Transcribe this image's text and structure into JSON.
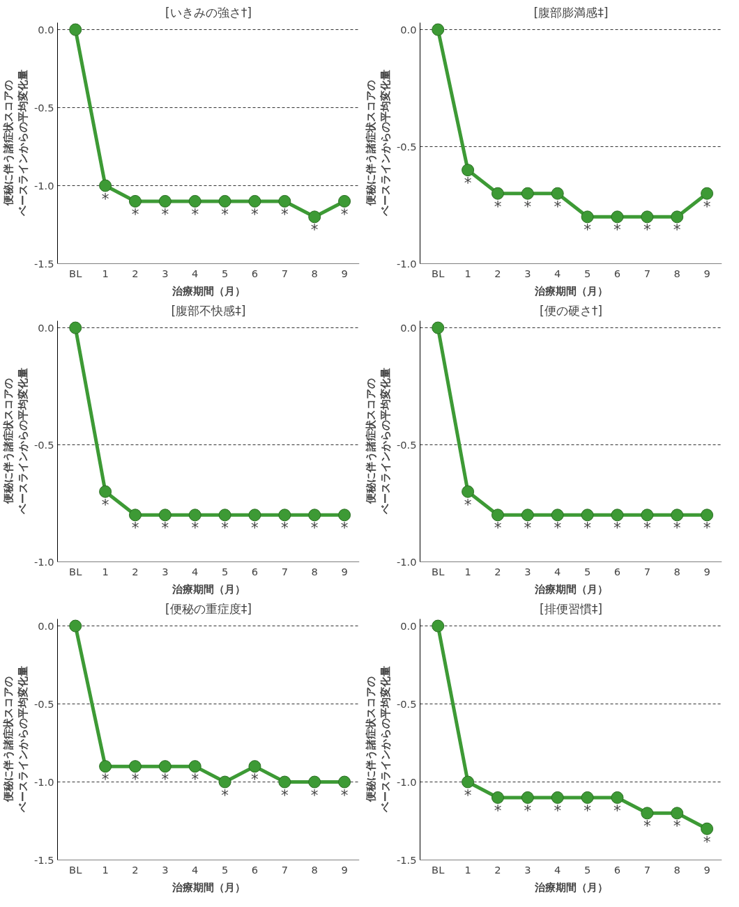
{
  "chart_data": [
    {
      "type": "line",
      "title": "[いきみの強さ†]",
      "xlabel": "治療期間（月）",
      "ylabel": "便秘に伴う諸症状スコアのベースラインからの平均変化量",
      "categories": [
        "BL",
        "1",
        "2",
        "3",
        "4",
        "5",
        "6",
        "7",
        "8",
        "9"
      ],
      "series": [
        {
          "color": "#3d9a35",
          "values": [
            0,
            -1.0,
            -1.1,
            -1.1,
            -1.1,
            -1.1,
            -1.1,
            -1.1,
            -1.2,
            -1.1
          ]
        }
      ],
      "ylim": [
        -1.5,
        0
      ],
      "yticks": [
        {
          "value": 0,
          "label": "0.0"
        },
        {
          "value": -0.5,
          "label": "-0.5"
        },
        {
          "value": -1,
          "label": "-1.0"
        },
        {
          "value": -1.5,
          "label": "-1.5"
        }
      ],
      "grid": "y",
      "marker": "circle",
      "line_style": "solid",
      "annotations": [
        {
          "text": "*",
          "x": "1",
          "y": -1.0
        },
        {
          "text": "*",
          "x": "2",
          "y": -1.1
        },
        {
          "text": "*",
          "x": "3",
          "y": -1.1
        },
        {
          "text": "*",
          "x": "4",
          "y": -1.1
        },
        {
          "text": "*",
          "x": "5",
          "y": -1.1
        },
        {
          "text": "*",
          "x": "6",
          "y": -1.1
        },
        {
          "text": "*",
          "x": "7",
          "y": -1.1
        },
        {
          "text": "*",
          "x": "8",
          "y": -1.2
        },
        {
          "text": "*",
          "x": "9",
          "y": -1.1
        }
      ]
    },
    {
      "type": "line",
      "title": "[腹部膨満感‡]",
      "xlabel": "治療期間（月）",
      "ylabel": "便秘に伴う諸症状スコアのベースラインからの平均変化量",
      "categories": [
        "BL",
        "1",
        "2",
        "3",
        "4",
        "5",
        "6",
        "7",
        "8",
        "9"
      ],
      "series": [
        {
          "color": "#3d9a35",
          "values": [
            0,
            -0.6,
            -0.7,
            -0.7,
            -0.7,
            -0.8,
            -0.8,
            -0.8,
            -0.8,
            -0.7
          ]
        }
      ],
      "ylim": [
        -1,
        0
      ],
      "yticks": [
        {
          "value": 0,
          "label": "0.0"
        },
        {
          "value": -0.5,
          "label": "-0.5"
        },
        {
          "value": -1,
          "label": "-1.0"
        }
      ],
      "grid": "y",
      "marker": "circle",
      "line_style": "solid",
      "annotations": [
        {
          "text": "*",
          "x": "1",
          "y": -0.6
        },
        {
          "text": "*",
          "x": "2",
          "y": -0.7
        },
        {
          "text": "*",
          "x": "3",
          "y": -0.7
        },
        {
          "text": "*",
          "x": "4",
          "y": -0.7
        },
        {
          "text": "*",
          "x": "5",
          "y": -0.8
        },
        {
          "text": "*",
          "x": "6",
          "y": -0.8
        },
        {
          "text": "*",
          "x": "7",
          "y": -0.8
        },
        {
          "text": "*",
          "x": "8",
          "y": -0.8
        },
        {
          "text": "*",
          "x": "9",
          "y": -0.7
        }
      ]
    },
    {
      "type": "line",
      "title": "[腹部不快感‡]",
      "xlabel": "治療期間（月）",
      "ylabel": "便秘に伴う諸症状スコアのベースラインからの平均変化量",
      "categories": [
        "BL",
        "1",
        "2",
        "3",
        "4",
        "5",
        "6",
        "7",
        "8",
        "9"
      ],
      "series": [
        {
          "color": "#3d9a35",
          "values": [
            0,
            -0.7,
            -0.8,
            -0.8,
            -0.8,
            -0.8,
            -0.8,
            -0.8,
            -0.8,
            -0.8
          ]
        }
      ],
      "ylim": [
        -1,
        0
      ],
      "yticks": [
        {
          "value": 0,
          "label": "0.0"
        },
        {
          "value": -0.5,
          "label": "-0.5"
        },
        {
          "value": -1,
          "label": "-1.0"
        }
      ],
      "grid": "y",
      "marker": "circle",
      "line_style": "solid",
      "annotations": [
        {
          "text": "*",
          "x": "1",
          "y": -0.7
        },
        {
          "text": "*",
          "x": "2",
          "y": -0.8
        },
        {
          "text": "*",
          "x": "3",
          "y": -0.8
        },
        {
          "text": "*",
          "x": "4",
          "y": -0.8
        },
        {
          "text": "*",
          "x": "5",
          "y": -0.8
        },
        {
          "text": "*",
          "x": "6",
          "y": -0.8
        },
        {
          "text": "*",
          "x": "7",
          "y": -0.8
        },
        {
          "text": "*",
          "x": "8",
          "y": -0.8
        },
        {
          "text": "*",
          "x": "9",
          "y": -0.8
        }
      ]
    },
    {
      "type": "line",
      "title": "[便の硬さ†]",
      "xlabel": "治療期間（月）",
      "ylabel": "便秘に伴う諸症状スコアのベースラインからの平均変化量",
      "categories": [
        "BL",
        "1",
        "2",
        "3",
        "4",
        "5",
        "6",
        "7",
        "8",
        "9"
      ],
      "series": [
        {
          "color": "#3d9a35",
          "values": [
            0,
            -0.7,
            -0.8,
            -0.8,
            -0.8,
            -0.8,
            -0.8,
            -0.8,
            -0.8,
            -0.8
          ]
        }
      ],
      "ylim": [
        -1,
        0
      ],
      "yticks": [
        {
          "value": 0,
          "label": "0.0"
        },
        {
          "value": -0.5,
          "label": "-0.5"
        },
        {
          "value": -1,
          "label": "-1.0"
        }
      ],
      "grid": "y",
      "marker": "circle",
      "line_style": "solid",
      "annotations": [
        {
          "text": "*",
          "x": "1",
          "y": -0.7
        },
        {
          "text": "*",
          "x": "2",
          "y": -0.8
        },
        {
          "text": "*",
          "x": "3",
          "y": -0.8
        },
        {
          "text": "*",
          "x": "4",
          "y": -0.8
        },
        {
          "text": "*",
          "x": "5",
          "y": -0.8
        },
        {
          "text": "*",
          "x": "6",
          "y": -0.8
        },
        {
          "text": "*",
          "x": "7",
          "y": -0.8
        },
        {
          "text": "*",
          "x": "8",
          "y": -0.8
        },
        {
          "text": "*",
          "x": "9",
          "y": -0.8
        }
      ]
    },
    {
      "type": "line",
      "title": "[便秘の重症度‡]",
      "xlabel": "治療期間（月）",
      "ylabel": "便秘に伴う諸症状スコアのベースラインからの平均変化量",
      "categories": [
        "BL",
        "1",
        "2",
        "3",
        "4",
        "5",
        "6",
        "7",
        "8",
        "9"
      ],
      "series": [
        {
          "color": "#3d9a35",
          "values": [
            0,
            -0.9,
            -0.9,
            -0.9,
            -0.9,
            -1.0,
            -0.9,
            -1.0,
            -1.0,
            -1.0
          ]
        }
      ],
      "ylim": [
        -1.5,
        0
      ],
      "yticks": [
        {
          "value": 0,
          "label": "0.0"
        },
        {
          "value": -0.5,
          "label": "-0.5"
        },
        {
          "value": -1,
          "label": "-1.0"
        },
        {
          "value": -1.5,
          "label": "-1.5"
        }
      ],
      "grid": "y",
      "marker": "circle",
      "line_style": "solid",
      "annotations": [
        {
          "text": "*",
          "x": "1",
          "y": -0.9
        },
        {
          "text": "*",
          "x": "2",
          "y": -0.9
        },
        {
          "text": "*",
          "x": "3",
          "y": -0.9
        },
        {
          "text": "*",
          "x": "4",
          "y": -0.9
        },
        {
          "text": "*",
          "x": "5",
          "y": -1.0
        },
        {
          "text": "*",
          "x": "6",
          "y": -0.9
        },
        {
          "text": "*",
          "x": "7",
          "y": -1.0
        },
        {
          "text": "*",
          "x": "8",
          "y": -1.0
        },
        {
          "text": "*",
          "x": "9",
          "y": -1.0
        }
      ]
    },
    {
      "type": "line",
      "title": "[排便習慣‡]",
      "xlabel": "治療期間（月）",
      "ylabel": "便秘に伴う諸症状スコアのベースラインからの平均変化量",
      "categories": [
        "BL",
        "1",
        "2",
        "3",
        "4",
        "5",
        "6",
        "7",
        "8",
        "9"
      ],
      "series": [
        {
          "color": "#3d9a35",
          "values": [
            0,
            -1.0,
            -1.1,
            -1.1,
            -1.1,
            -1.1,
            -1.1,
            -1.2,
            -1.2,
            -1.3
          ]
        }
      ],
      "ylim": [
        -1.5,
        0
      ],
      "yticks": [
        {
          "value": 0,
          "label": "0.0"
        },
        {
          "value": -0.5,
          "label": "-0.5"
        },
        {
          "value": -1,
          "label": "-1.0"
        },
        {
          "value": -1.5,
          "label": "-1.5"
        }
      ],
      "grid": "y",
      "marker": "circle",
      "line_style": "solid",
      "annotations": [
        {
          "text": "*",
          "x": "1",
          "y": -1.0
        },
        {
          "text": "*",
          "x": "2",
          "y": -1.1
        },
        {
          "text": "*",
          "x": "3",
          "y": -1.1
        },
        {
          "text": "*",
          "x": "4",
          "y": -1.1
        },
        {
          "text": "*",
          "x": "5",
          "y": -1.1
        },
        {
          "text": "*",
          "x": "6",
          "y": -1.1
        },
        {
          "text": "*",
          "x": "7",
          "y": -1.2
        },
        {
          "text": "*",
          "x": "8",
          "y": -1.2
        },
        {
          "text": "*",
          "x": "9",
          "y": -1.3
        }
      ]
    }
  ]
}
